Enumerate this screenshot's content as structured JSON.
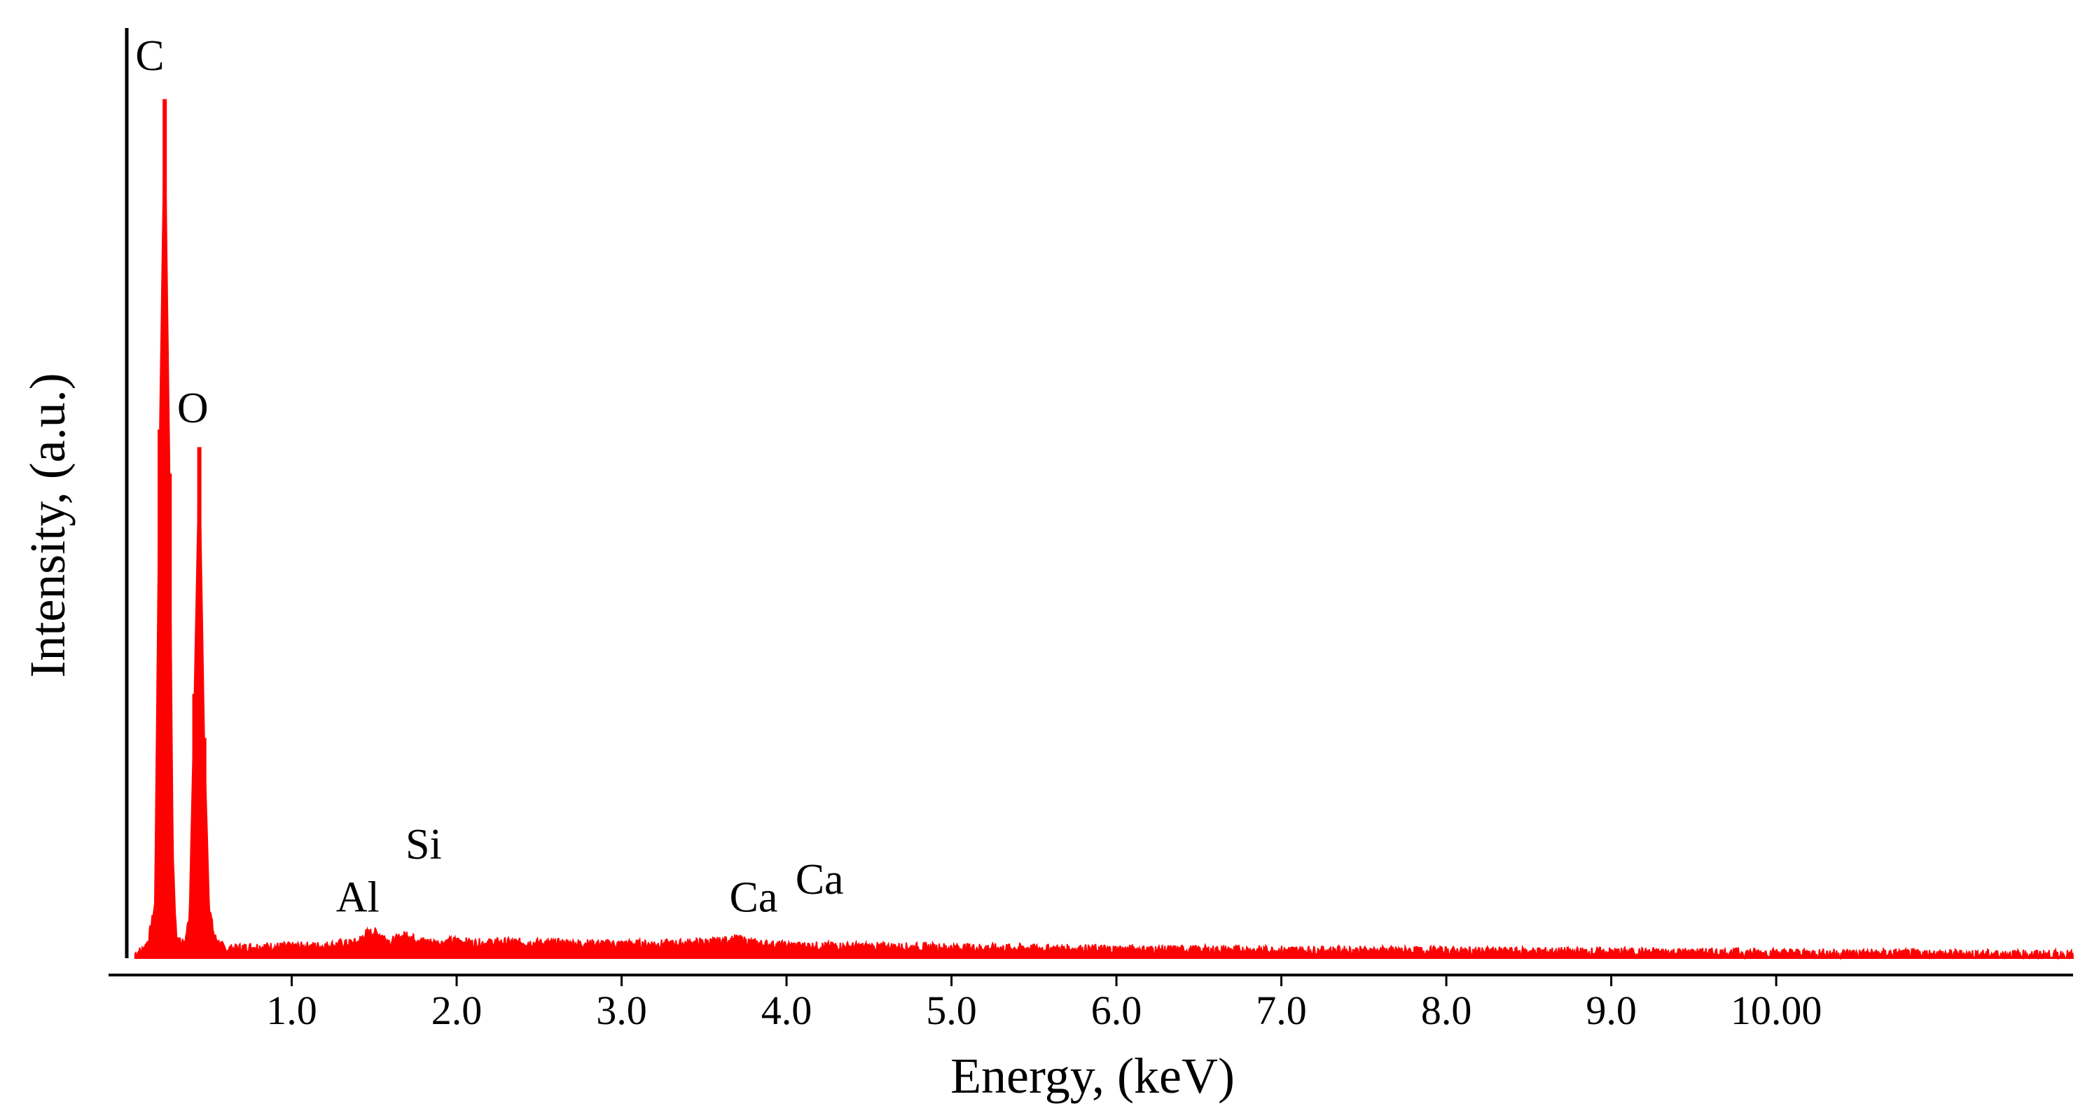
{
  "chart_data": {
    "type": "line",
    "title": "",
    "xlabel": "Energy, (keV)",
    "ylabel": "Intensity, (a.u.)",
    "xlim": [
      0,
      11.8
    ],
    "ylim": [
      0,
      100
    ],
    "grid": false,
    "x_ticks": [
      {
        "value": 1,
        "label": "1.0"
      },
      {
        "value": 2,
        "label": "2.0"
      },
      {
        "value": 3,
        "label": "3.0"
      },
      {
        "value": 4,
        "label": "4.0"
      },
      {
        "value": 5,
        "label": "5.0"
      },
      {
        "value": 6,
        "label": "6.0"
      },
      {
        "value": 7,
        "label": "7.0"
      },
      {
        "value": 8,
        "label": "8.0"
      },
      {
        "value": 9,
        "label": "9.0"
      },
      {
        "value": 10,
        "label": "10.00"
      }
    ],
    "series": [
      {
        "color": "#ff0000",
        "x": [
          0.05,
          0.1,
          0.13,
          0.17,
          0.2,
          0.23,
          0.26,
          0.28,
          0.3,
          0.35,
          0.38,
          0.41,
          0.44,
          0.47,
          0.5,
          0.53,
          0.57,
          0.6,
          0.7,
          0.8,
          1.0,
          1.2,
          1.4,
          1.45,
          1.5,
          1.55,
          1.6,
          1.65,
          1.7,
          1.75,
          1.8,
          1.9,
          2.0,
          2.1,
          2.3,
          2.6,
          3.0,
          3.3,
          3.6,
          3.7,
          3.8,
          4.0,
          4.5,
          5.0,
          6.0,
          7.0,
          8.0,
          9.0,
          10.0,
          11.0,
          11.8
        ],
        "y": [
          0.5,
          1.0,
          2.0,
          6.0,
          60.0,
          97.5,
          55.0,
          12.0,
          2.5,
          1.5,
          5.0,
          30.0,
          58.0,
          25.0,
          6.0,
          2.5,
          1.5,
          1.0,
          1.2,
          1.3,
          1.3,
          1.4,
          1.8,
          2.8,
          3.0,
          2.5,
          1.8,
          2.3,
          2.7,
          2.2,
          1.9,
          1.7,
          2.0,
          1.7,
          1.8,
          1.7,
          1.6,
          1.6,
          1.9,
          2.2,
          1.7,
          1.4,
          1.3,
          1.2,
          1.0,
          0.9,
          0.8,
          0.7,
          0.6,
          0.5,
          0.4
        ]
      }
    ],
    "annotations": [
      {
        "text": "C",
        "x": 0.14,
        "y": 100
      },
      {
        "text": "O",
        "x": 0.4,
        "y": 60
      },
      {
        "text": "Al",
        "x": 1.4,
        "y": 4.5
      },
      {
        "text": "Si",
        "x": 1.8,
        "y": 10.5
      },
      {
        "text": "Ca",
        "x": 3.8,
        "y": 4.5
      },
      {
        "text": "Ca",
        "x": 4.2,
        "y": 6.5
      }
    ]
  }
}
